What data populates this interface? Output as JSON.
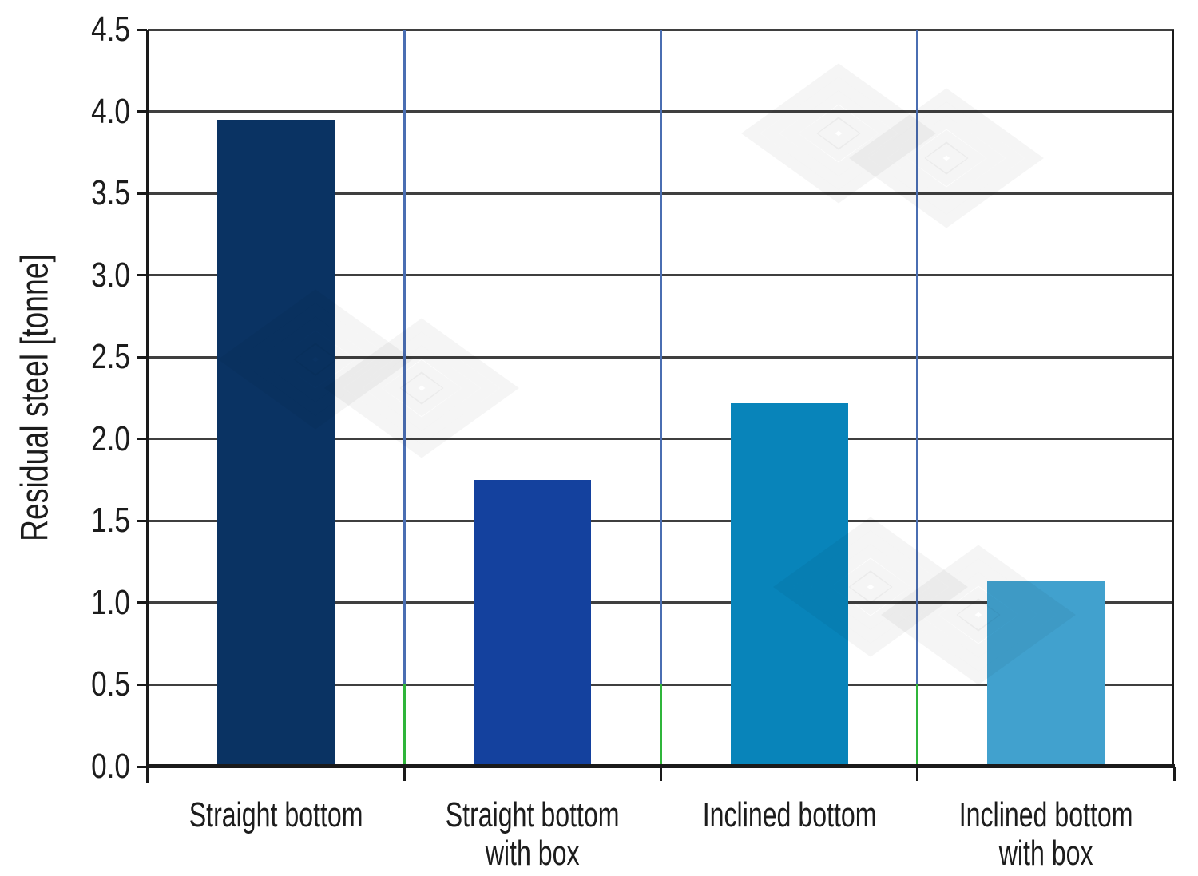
{
  "figure": {
    "background": "#ffffff",
    "text_color": "#1c1c1c"
  },
  "chart_data": {
    "type": "bar",
    "title": "",
    "xlabel": "",
    "ylabel": "Residual steel [tonne]",
    "categories": [
      "Straight bottom",
      "Straight bottom\nwith box",
      "Inclined bottom",
      "Inclined bottom\nwith box"
    ],
    "values": [
      3.95,
      1.75,
      2.22,
      1.13
    ],
    "bar_colors": [
      "#0a3363",
      "#14419e",
      "#0884ba",
      "#41a1ce"
    ],
    "ylim": [
      0,
      4.5
    ],
    "ytick_step": 0.5,
    "ytick_labels": [
      "0.0",
      "0.5",
      "1.0",
      "1.5",
      "2.0",
      "2.5",
      "3.0",
      "3.5",
      "4.0",
      "4.5"
    ],
    "grid_on": true,
    "legend": "none",
    "gridline_color_horizontal": "#3f3f3f",
    "gridline_color_vertical_upper": "#4a6eb2",
    "gridline_color_vertical_lower": "#2fb53a",
    "axis_color": "#1a1a1a"
  },
  "watermark": {
    "icon": "nested-diamonds-logo",
    "color": "rgba(0,0,0,0.04)"
  }
}
